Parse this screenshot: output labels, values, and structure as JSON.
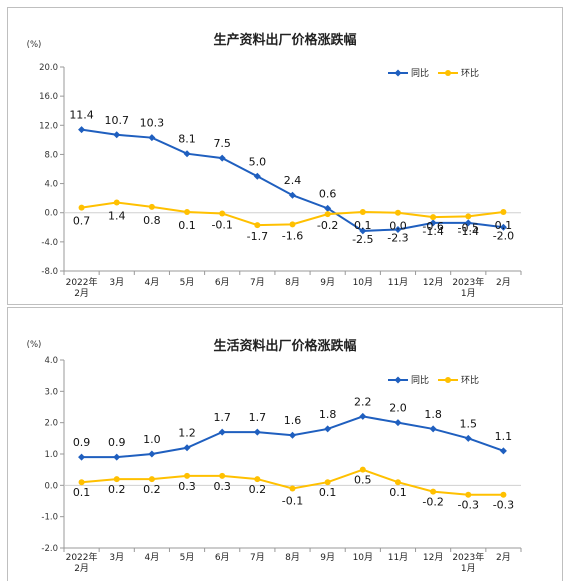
{
  "colors": {
    "yoy": "#1f5fbf",
    "mom": "#ffc000",
    "axis": "#999999",
    "frame": "#bfbfbf"
  },
  "chart_data": [
    {
      "type": "line",
      "title": "生产资料出厂价格涨跌幅",
      "unit": "(%)",
      "categories": [
        [
          "2022年",
          "2月"
        ],
        [
          "3月"
        ],
        [
          "4月"
        ],
        [
          "5月"
        ],
        [
          "6月"
        ],
        [
          "7月"
        ],
        [
          "8月"
        ],
        [
          "9月"
        ],
        [
          "10月"
        ],
        [
          "11月"
        ],
        [
          "12月"
        ],
        [
          "2023年",
          "1月"
        ],
        [
          "2月"
        ]
      ],
      "ylim": [
        -8.0,
        20.0
      ],
      "yticks": [
        "20.0",
        "16.0",
        "12.0",
        "8.0",
        "4.0",
        "0.0",
        "-4.0",
        "-8.0"
      ],
      "ytick_values": [
        20,
        16,
        12,
        8,
        4,
        0,
        -4,
        -8
      ],
      "legend_position": "top-right",
      "grid": false,
      "series": [
        {
          "name": "同比",
          "marker": "diamond",
          "values": [
            11.4,
            10.7,
            10.3,
            8.1,
            7.5,
            5.0,
            2.4,
            0.6,
            -2.5,
            -2.3,
            -1.4,
            -1.4,
            -2.0
          ],
          "labels": [
            "11.4",
            "10.7",
            "10.3",
            "8.1",
            "7.5",
            "5.0",
            "2.4",
            "0.6",
            "-2.5",
            "-2.3",
            "-1.4",
            "-1.4",
            "-2.0"
          ]
        },
        {
          "name": "环比",
          "marker": "circle",
          "values": [
            0.7,
            1.4,
            0.8,
            0.1,
            -0.1,
            -1.7,
            -1.6,
            -0.2,
            0.1,
            0.0,
            -0.6,
            -0.5,
            0.1
          ],
          "labels": [
            "0.7",
            "1.4",
            "0.8",
            "0.1",
            "-0.1",
            "-1.7",
            "-1.6",
            "-0.2",
            "0.1",
            "0.0",
            "-0.6",
            "-0.5",
            "0.1"
          ]
        }
      ]
    },
    {
      "type": "line",
      "title": "生活资料出厂价格涨跌幅",
      "unit": "(%)",
      "categories": [
        [
          "2022年",
          "2月"
        ],
        [
          "3月"
        ],
        [
          "4月"
        ],
        [
          "5月"
        ],
        [
          "6月"
        ],
        [
          "7月"
        ],
        [
          "8月"
        ],
        [
          "9月"
        ],
        [
          "10月"
        ],
        [
          "11月"
        ],
        [
          "12月"
        ],
        [
          "2023年",
          "1月"
        ],
        [
          "2月"
        ]
      ],
      "ylim": [
        -2.0,
        4.0
      ],
      "yticks": [
        "4.0",
        "3.0",
        "2.0",
        "1.0",
        "0.0",
        "-1.0",
        "-2.0"
      ],
      "ytick_values": [
        4,
        3,
        2,
        1,
        0,
        -1,
        -2
      ],
      "legend_position": "top-right",
      "grid": false,
      "series": [
        {
          "name": "同比",
          "marker": "diamond",
          "values": [
            0.9,
            0.9,
            1.0,
            1.2,
            1.7,
            1.7,
            1.6,
            1.8,
            2.2,
            2.0,
            1.8,
            1.5,
            1.1
          ],
          "labels": [
            "0.9",
            "0.9",
            "1.0",
            "1.2",
            "1.7",
            "1.7",
            "1.6",
            "1.8",
            "2.2",
            "2.0",
            "1.8",
            "1.5",
            "1.1"
          ]
        },
        {
          "name": "环比",
          "marker": "circle",
          "values": [
            0.1,
            0.2,
            0.2,
            0.3,
            0.3,
            0.2,
            -0.1,
            0.1,
            0.5,
            0.1,
            -0.2,
            -0.3,
            -0.3
          ],
          "labels": [
            "0.1",
            "0.2",
            "0.2",
            "0.3",
            "0.3",
            "0.2",
            "-0.1",
            "0.1",
            "0.5",
            "0.1",
            "-0.2",
            "-0.3",
            "-0.3"
          ]
        }
      ]
    }
  ]
}
